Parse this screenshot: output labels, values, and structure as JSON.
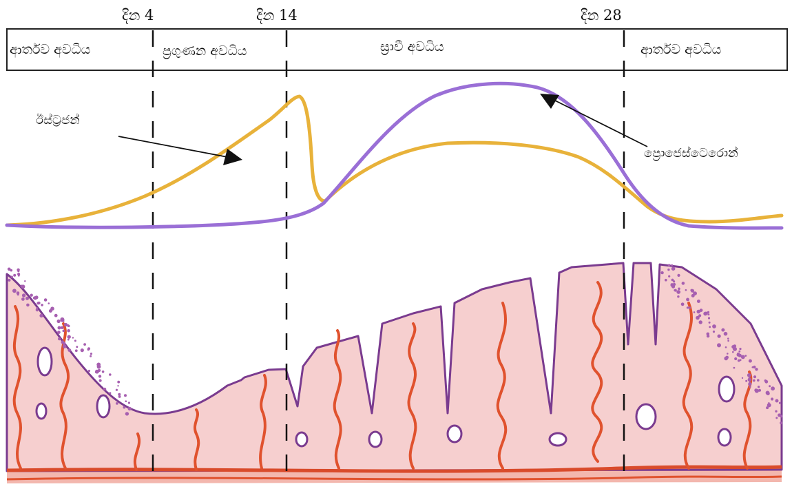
{
  "days": [
    {
      "label": "දින 4"
    },
    {
      "label": "දින 14"
    },
    {
      "label": "දින 28"
    }
  ],
  "phases": [
    {
      "label": "ආර්තව අවධිය"
    },
    {
      "label": "ප්‍රගුණන අවධිය"
    },
    {
      "label": "ස්‍රාවී අවධිය"
    },
    {
      "label": "ආර්තව අවධිය"
    }
  ],
  "hormones": {
    "estrogen": {
      "label": "ඊස්ට්‍රජන්",
      "color": "#e8b23a"
    },
    "progesterone": {
      "label": "ප්‍රොජෙස්ටෙරොන්",
      "color": "#9a6fd6"
    }
  },
  "tissue": {
    "fill": "#f6cfcf",
    "outline": "#7a3b8f",
    "gland": "#e0522e",
    "base": "#d94b2b"
  }
}
